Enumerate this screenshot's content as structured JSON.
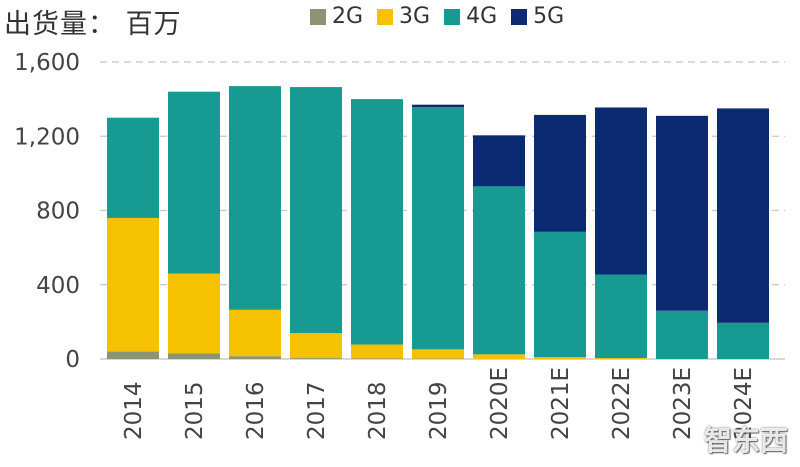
{
  "chart_data": {
    "type": "bar",
    "stacked": true,
    "unit_label": "出货量： 百万",
    "categories": [
      "2014",
      "2015",
      "2016",
      "2017",
      "2018",
      "2019",
      "2020E",
      "2021E",
      "2022E",
      "2023E",
      "2024E"
    ],
    "series": [
      {
        "name": "2G",
        "color": "#8c9572",
        "values": [
          40,
          30,
          15,
          5,
          3,
          2,
          0,
          0,
          0,
          0,
          0
        ]
      },
      {
        "name": "3G",
        "color": "#f6c100",
        "values": [
          720,
          430,
          250,
          135,
          75,
          50,
          25,
          10,
          5,
          0,
          0
        ]
      },
      {
        "name": "4G",
        "color": "#169a91",
        "values": [
          540,
          980,
          1205,
          1325,
          1322,
          1305,
          905,
          675,
          450,
          260,
          195
        ]
      },
      {
        "name": "5G",
        "color": "#0c2a72",
        "values": [
          0,
          0,
          0,
          0,
          0,
          13,
          275,
          630,
          900,
          1050,
          1155
        ]
      }
    ],
    "yticks": [
      "0",
      "400",
      "800",
      "1,200",
      "1,600"
    ],
    "ylim": [
      0,
      1600
    ],
    "grid": true,
    "legend": "top",
    "xlabel": "",
    "ylabel": ""
  },
  "watermark": "智东西"
}
